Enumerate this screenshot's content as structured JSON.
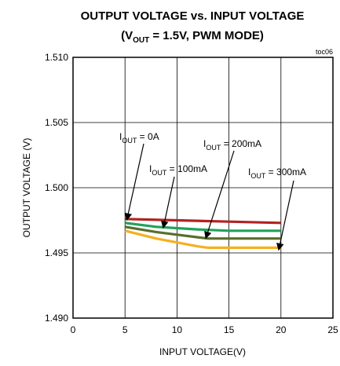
{
  "chart_data": {
    "type": "line",
    "title": "OUTPUT VOLTAGE vs. INPUT VOLTAGE",
    "subtitle": {
      "prefix": "(V",
      "sub": "OUT",
      "suffix": " = 1.5V, PWM MODE)"
    },
    "figure_id": "toc06",
    "xlabel": "INPUT VOLTAGE(V)",
    "ylabel": "OUTPUT VOLTAGE (V)",
    "xlim": [
      0,
      25
    ],
    "ylim": [
      1.49,
      1.51
    ],
    "x_ticks": [
      "0",
      "5",
      "10",
      "15",
      "20",
      "25"
    ],
    "y_ticks": [
      "1.490",
      "1.495",
      "1.500",
      "1.505",
      "1.510"
    ],
    "grid": true,
    "series": [
      {
        "color": "#b22222",
        "x": [
          5,
          10,
          15,
          20
        ],
        "y": [
          1.4976,
          1.4975,
          1.4974,
          1.4973
        ]
      },
      {
        "color": "#1fa35a",
        "x": [
          5,
          8,
          10,
          12,
          15,
          20
        ],
        "y": [
          1.4973,
          1.497,
          1.4969,
          1.4968,
          1.4967,
          1.4967
        ]
      },
      {
        "color": "#5a6e2a",
        "x": [
          5,
          8,
          10,
          12,
          13,
          15,
          20
        ],
        "y": [
          1.497,
          1.4966,
          1.4964,
          1.4962,
          1.4961,
          1.4961,
          1.4961
        ]
      },
      {
        "color": "#f5b020",
        "x": [
          5,
          8,
          10,
          12,
          13,
          15,
          20
        ],
        "y": [
          1.4967,
          1.4961,
          1.4958,
          1.4955,
          1.4954,
          1.4954,
          1.4954
        ]
      }
    ],
    "annotations": [
      {
        "pre": "I",
        "sub": "OUT",
        "post": " = 0A",
        "target": [
          5.2,
          1.4976
        ]
      },
      {
        "pre": "I",
        "sub": "OUT",
        "post": " = 100mA",
        "target": [
          8.7,
          1.497
        ]
      },
      {
        "pre": "I",
        "sub": "OUT",
        "post": " = 200mA",
        "target": [
          12.8,
          1.4962
        ]
      },
      {
        "pre": "I",
        "sub": "OUT",
        "post": " = 300mA",
        "target": [
          19.8,
          1.4953
        ]
      }
    ]
  }
}
